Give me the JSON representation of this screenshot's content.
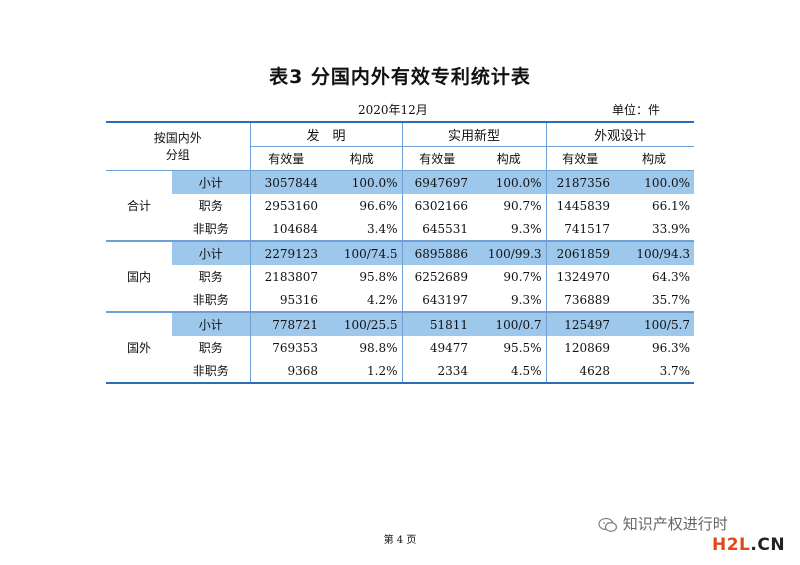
{
  "title": "表3 分国内外有效专利统计表",
  "date": "2020年12月",
  "unit": "单位：件",
  "header": {
    "group_label_1": "按国内外",
    "group_label_2": "分组",
    "cat_invention": "发　明",
    "cat_utility": "实用新型",
    "cat_design": "外观设计",
    "sub_count": "有效量",
    "sub_ratio": "构成"
  },
  "groups": [
    {
      "name": "合计",
      "rows": [
        {
          "label": "小计",
          "inv_count": "3057844",
          "inv_ratio": "100.0%",
          "uti_count": "6947697",
          "uti_ratio": "100.0%",
          "des_count": "2187356",
          "des_ratio": "100.0%"
        },
        {
          "label": "职务",
          "inv_count": "2953160",
          "inv_ratio": "96.6%",
          "uti_count": "6302166",
          "uti_ratio": "90.7%",
          "des_count": "1445839",
          "des_ratio": "66.1%"
        },
        {
          "label": "非职务",
          "inv_count": "104684",
          "inv_ratio": "3.4%",
          "uti_count": "645531",
          "uti_ratio": "9.3%",
          "des_count": "741517",
          "des_ratio": "33.9%"
        }
      ]
    },
    {
      "name": "国内",
      "rows": [
        {
          "label": "小计",
          "inv_count": "2279123",
          "inv_ratio": "100/74.5",
          "uti_count": "6895886",
          "uti_ratio": "100/99.3",
          "des_count": "2061859",
          "des_ratio": "100/94.3"
        },
        {
          "label": "职务",
          "inv_count": "2183807",
          "inv_ratio": "95.8%",
          "uti_count": "6252689",
          "uti_ratio": "90.7%",
          "des_count": "1324970",
          "des_ratio": "64.3%"
        },
        {
          "label": "非职务",
          "inv_count": "95316",
          "inv_ratio": "4.2%",
          "uti_count": "643197",
          "uti_ratio": "9.3%",
          "des_count": "736889",
          "des_ratio": "35.7%"
        }
      ]
    },
    {
      "name": "国外",
      "rows": [
        {
          "label": "小计",
          "inv_count": "778721",
          "inv_ratio": "100/25.5",
          "uti_count": "51811",
          "uti_ratio": "100/0.7",
          "des_count": "125497",
          "des_ratio": "100/5.7"
        },
        {
          "label": "职务",
          "inv_count": "769353",
          "inv_ratio": "98.8%",
          "uti_count": "49477",
          "uti_ratio": "95.5%",
          "des_count": "120869",
          "des_ratio": "96.3%"
        },
        {
          "label": "非职务",
          "inv_count": "9368",
          "inv_ratio": "1.2%",
          "uti_count": "2334",
          "uti_ratio": "4.5%",
          "des_count": "4628",
          "des_ratio": "3.7%"
        }
      ]
    }
  ],
  "page_number": "第 4 页",
  "watermark": "知识产权进行时",
  "logo_h2l": "H2L",
  "logo_cn": ".CN"
}
